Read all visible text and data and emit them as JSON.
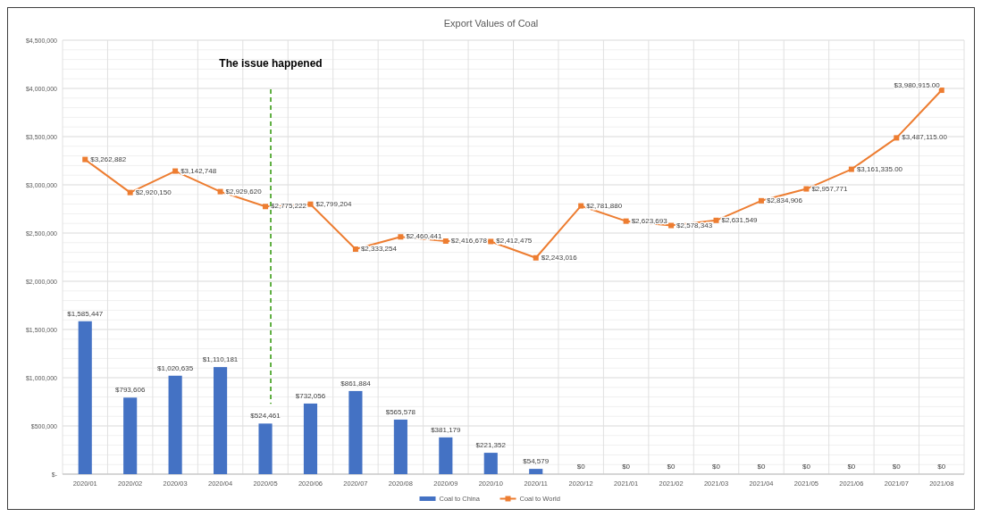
{
  "chart_data": {
    "type": "bar",
    "title": "Export Values of Coal",
    "categories": [
      "2020/01",
      "2020/02",
      "2020/03",
      "2020/04",
      "2020/05",
      "2020/06",
      "2020/07",
      "2020/08",
      "2020/09",
      "2020/10",
      "2020/11",
      "2020/12",
      "2021/01",
      "2021/02",
      "2021/03",
      "2021/04",
      "2021/05",
      "2021/06",
      "2021/07",
      "2021/08"
    ],
    "series": [
      {
        "name": "Coal to China",
        "color": "#4472c4",
        "values": [
          1585447,
          793606,
          1020635,
          1110181,
          524461,
          732056,
          861884,
          565578,
          381179,
          221352,
          54579,
          0,
          0,
          0,
          0,
          0,
          0,
          0,
          0,
          0
        ],
        "value_labels": [
          "$1,585,447",
          "$793,606",
          "$1,020,635",
          "$1,110,181",
          "$524,461",
          "$732,056",
          "$861,884",
          "$565,578",
          "$381,179",
          "$221,352",
          "$54,579",
          "$0",
          "$0",
          "$0",
          "$0",
          "$0",
          "$0",
          "$0",
          "$0",
          "$0"
        ]
      },
      {
        "name": "Coal to World",
        "type": "line",
        "color": "#ed7d31",
        "marker": "square",
        "values": [
          3262882,
          2920150,
          3142748,
          2929620,
          2775222,
          2799204,
          2333254,
          2460441,
          2416678,
          2412475,
          2243016,
          2781880,
          2623693,
          2578343,
          2631549,
          2834906,
          2957771,
          3161335,
          3487115,
          3980915
        ],
        "value_labels": [
          "$3,262,882",
          "$2,920,150",
          "$3,142,748",
          "$2,929,620",
          "$2,775,222",
          "$2,799,204",
          "$2,333,254",
          "$2,460,441",
          "$2,416,678",
          "$2,412,475",
          "$2,243,016",
          "$2,781,880",
          "$2,623,693",
          "$2,578,343",
          "$2,631,549",
          "$2,834,906",
          "$2,957,771",
          "$3,161,335.00",
          "$3,487,115.00",
          "$3,980,915.00"
        ]
      }
    ],
    "ylim": [
      0,
      4500000
    ],
    "yticks": [
      {
        "value": 0,
        "label": "$-"
      },
      {
        "value": 500000,
        "label": "$500,000"
      },
      {
        "value": 1000000,
        "label": "$1,000,000"
      },
      {
        "value": 1500000,
        "label": "$1,500,000"
      },
      {
        "value": 2000000,
        "label": "$2,000,000"
      },
      {
        "value": 2500000,
        "label": "$2,500,000"
      },
      {
        "value": 3000000,
        "label": "$3,000,000"
      },
      {
        "value": 3500000,
        "label": "$3,500,000"
      },
      {
        "value": 4000000,
        "label": "$4,000,000"
      },
      {
        "value": 4500000,
        "label": "$4,500,000"
      }
    ],
    "ref_lines": [
      {
        "axis": "x",
        "value": "2020/05",
        "label": "The issue happened",
        "color": "#4ea72e",
        "line_style": "dashed"
      }
    ],
    "grid": true,
    "legend": "bottom"
  }
}
